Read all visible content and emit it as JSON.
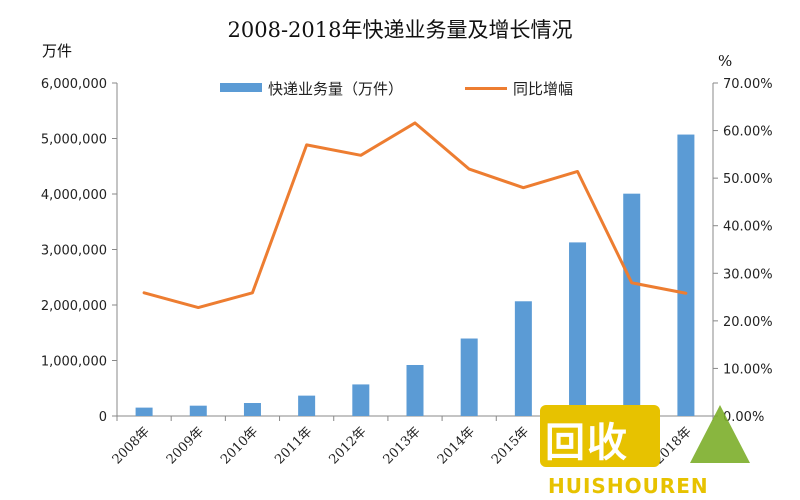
{
  "chart_data": {
    "type": "bar",
    "title": "2008-2018年快递业务量及增长情况",
    "ylabel_left": "万件",
    "ylabel_right": "%",
    "categories": [
      "2008年",
      "2009年",
      "2010年",
      "2011年",
      "2012年",
      "2013年",
      "2014年",
      "2015年",
      "2016年",
      "2017年",
      "2018年"
    ],
    "series": [
      {
        "name": "快递业务量（万件）",
        "type": "bar",
        "axis": "left",
        "color": "#5b9bd5",
        "values": [
          151000,
          186000,
          234000,
          367000,
          569000,
          919000,
          1396000,
          2067000,
          3128000,
          4006000,
          5071000
        ]
      },
      {
        "name": "同比增幅",
        "type": "line",
        "axis": "right",
        "color": "#ed7d31",
        "values": [
          25.9,
          22.8,
          25.9,
          57.0,
          54.8,
          61.6,
          51.9,
          48.0,
          51.4,
          28.0,
          25.8
        ]
      }
    ],
    "ylim_left": [
      0,
      6000000
    ],
    "yticks_left": [
      "0",
      "1,000,000",
      "2,000,000",
      "3,000,000",
      "4,000,000",
      "5,000,000",
      "6,000,000"
    ],
    "ylim_right": [
      0,
      70
    ],
    "yticks_right": [
      "0.00%",
      "10.00%",
      "20.00%",
      "30.00%",
      "40.00%",
      "50.00%",
      "60.00%",
      "70.00%"
    ],
    "grid": false,
    "legend_position": "top-center"
  },
  "watermark": {
    "main": "回收",
    "sub": "HUISHOUREN",
    "colors": {
      "box": "#e7c200",
      "arrow": "#7cae2a"
    }
  }
}
